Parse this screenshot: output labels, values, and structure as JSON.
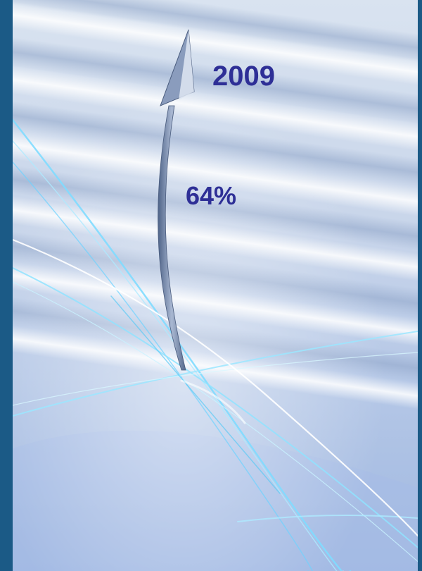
{
  "year_label": "2009",
  "percent_label": "64%",
  "colors": {
    "frame": "#1b5a86",
    "text": "#2e2f96",
    "light_streak": "#8fe3ff",
    "arrow": "#5a6f90"
  },
  "icons": {
    "arrow": "curved-up-arrow-icon"
  }
}
